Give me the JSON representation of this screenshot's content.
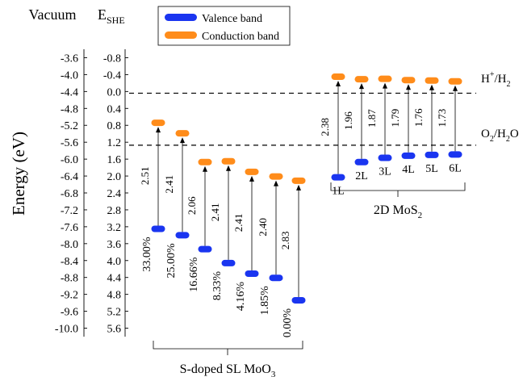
{
  "chart_data": {
    "type": "band-diagram",
    "ylabel": "Energy (eV)",
    "left_axis": {
      "title": "Vacuum",
      "ticks": [
        "-3.6",
        "-4.0",
        "-4.4",
        "-4.8",
        "-5.2",
        "-5.6",
        "-6.0",
        "-6.4",
        "-6.8",
        "-7.2",
        "-7.6",
        "-8.0",
        "-8.4",
        "-8.8",
        "-9.2",
        "-9.6",
        "-10.0"
      ],
      "range": [
        -10.2,
        -3.4
      ]
    },
    "right_axis": {
      "title_main": "E",
      "title_sub": "SHE",
      "ticks": [
        "-0.8",
        "-0.4",
        "0.0",
        "0.4",
        "0.8",
        "1.2",
        "1.6",
        "2.0",
        "2.4",
        "2.8",
        "3.2",
        "3.6",
        "4.0",
        "4.4",
        "4.8",
        "5.2",
        "5.6"
      ],
      "range": [
        -1.0,
        5.8
      ]
    },
    "legend": {
      "position": "top-center",
      "items": [
        {
          "label": "Valence band",
          "color": "#1a35f0"
        },
        {
          "label": "Conduction band",
          "color": "#ff8c1a"
        }
      ]
    },
    "reference_lines": [
      {
        "label_main": "H",
        "label_sup": "+",
        "label_mid": "/H",
        "label_sub": "2",
        "value": -4.44
      },
      {
        "label_main": "O",
        "label_sub": "2",
        "label_rest": "/H",
        "label_sub2": "2",
        "label_end": "O",
        "value": -5.67
      }
    ],
    "groups": [
      {
        "name_main": "S-doped SL MoO",
        "name_sub": "3",
        "members": [
          {
            "label": "33.00%",
            "cb": -5.14,
            "vb": -7.65,
            "gap": "2.51"
          },
          {
            "label": "25.00%",
            "cb": -5.39,
            "vb": -7.8,
            "gap": "2.41"
          },
          {
            "label": "16.66%",
            "cb": -6.07,
            "vb": -8.13,
            "gap": "2.06"
          },
          {
            "label": "8.33%",
            "cb": -6.05,
            "vb": -8.46,
            "gap": "2.41"
          },
          {
            "label": "4.16%",
            "cb": -6.3,
            "vb": -8.71,
            "gap": "2.41"
          },
          {
            "label": "1.85%",
            "cb": -6.41,
            "vb": -8.81,
            "gap": "2.40"
          },
          {
            "label": "0.00%",
            "cb": -6.51,
            "vb": -9.34,
            "gap": "2.83"
          }
        ]
      },
      {
        "name_main": "2D MoS",
        "name_sub": "2",
        "members": [
          {
            "label": "1L",
            "cb": -4.05,
            "vb": -6.43,
            "gap": "2.38"
          },
          {
            "label": "2L",
            "cb": -4.11,
            "vb": -6.07,
            "gap": "1.96"
          },
          {
            "label": "3L",
            "cb": -4.1,
            "vb": -5.97,
            "gap": "1.87"
          },
          {
            "label": "4L",
            "cb": -4.13,
            "vb": -5.92,
            "gap": "1.79"
          },
          {
            "label": "5L",
            "cb": -4.14,
            "vb": -5.9,
            "gap": "1.76"
          },
          {
            "label": "6L",
            "cb": -4.16,
            "vb": -5.89,
            "gap": "1.73"
          }
        ]
      }
    ]
  }
}
